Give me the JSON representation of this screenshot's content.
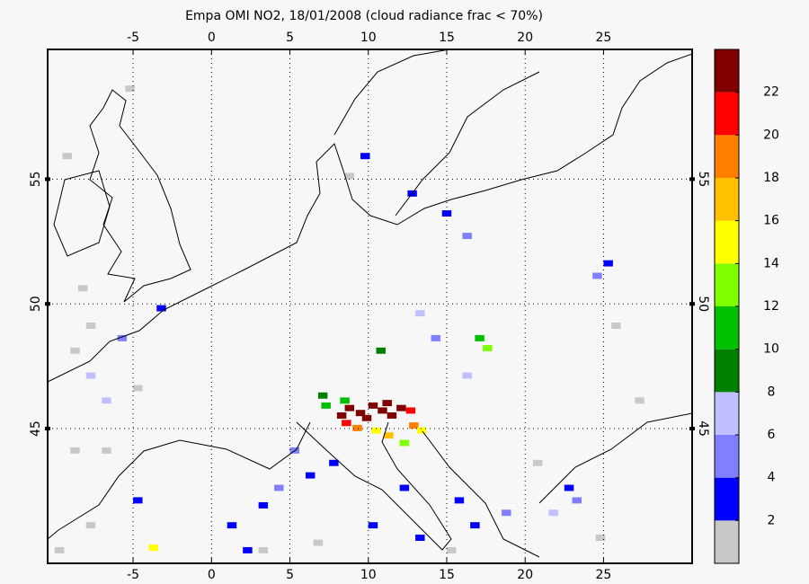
{
  "chart_data": {
    "type": "grid-map",
    "title": "Empa OMI NO2, 18/01/2008 (cloud radiance frac < 70%)",
    "xlim": [
      -10.45,
      30.65
    ],
    "ylim": [
      39.6,
      60.2
    ],
    "xticks": [
      -5,
      0,
      5,
      10,
      15,
      20,
      25
    ],
    "yticks": [
      45,
      50,
      55
    ],
    "grid": true,
    "colorbar": {
      "lim": [
        0,
        24
      ],
      "ticks": [
        2,
        4,
        6,
        8,
        10,
        12,
        14,
        16,
        18,
        20,
        22
      ],
      "colors": [
        "#c8c8c8",
        "#0000ff",
        "#8080ff",
        "#c0c0ff",
        "#008000",
        "#00c000",
        "#80ff00",
        "#ffff00",
        "#ffc000",
        "#ff8000",
        "#ff0000",
        "#800000"
      ]
    },
    "cells": {
      "lon": [
        8.5,
        9.2,
        10,
        10.6,
        11.2,
        11.8,
        9.6,
        10.9,
        8,
        8.3,
        12.4,
        12.6,
        9,
        10.2,
        13.1,
        -4,
        11,
        8.2,
        16.8,
        7,
        12,
        17.3,
        6.8,
        10.5,
        -8,
        -7,
        16,
        13,
        21.5,
        5,
        4,
        14,
        24.3,
        16,
        -6,
        18.5,
        23,
        6,
        3,
        1,
        10,
        13,
        15.5,
        16.5,
        25,
        -3.5,
        22.5,
        -5,
        2,
        9.5,
        12.5,
        14.7,
        7.5,
        12,
        -8,
        -9,
        -7,
        -9,
        -8,
        -10,
        27,
        25.5,
        3,
        6.5,
        15,
        -5,
        -8.5,
        -9.5,
        -5.5,
        8.5,
        20.5,
        24.5
      ],
      "lat": [
        45.7,
        45.5,
        45.8,
        45.6,
        45.4,
        45.7,
        45.3,
        45.9,
        45.4,
        45.1,
        45.6,
        45.0,
        44.9,
        44.8,
        44.8,
        40.1,
        44.6,
        46.0,
        48.5,
        45.8,
        44.3,
        48.1,
        46.2,
        48.0,
        47,
        46,
        47,
        49.5,
        41.5,
        44,
        42.5,
        48.5,
        51,
        52.6,
        48.5,
        41.5,
        42,
        43,
        41.8,
        41,
        41,
        40.5,
        42,
        41,
        51.5,
        49.7,
        42.5,
        42,
        40,
        55.8,
        54.3,
        53.5,
        43.5,
        42.5,
        49,
        48,
        44,
        44,
        41,
        40,
        46,
        49,
        40,
        40.3,
        40,
        46.5,
        50.5,
        55.8,
        58.5,
        55,
        43.5,
        40.5
      ],
      "values": [
        23,
        23,
        23,
        23,
        23,
        23,
        23,
        23,
        23,
        21,
        21,
        19,
        19,
        15,
        15,
        15,
        17,
        11,
        11,
        11,
        13,
        13,
        9,
        9,
        7,
        7,
        7,
        7,
        7,
        5,
        5,
        5,
        5,
        5,
        5,
        5,
        5,
        3,
        3,
        3,
        3,
        3,
        3,
        3,
        3,
        3,
        3,
        3,
        3,
        3,
        3,
        3,
        3,
        3,
        1,
        1,
        1,
        1,
        1,
        1,
        1,
        1,
        1,
        1,
        1,
        1,
        1,
        1,
        1,
        1,
        1,
        1
      ]
    }
  }
}
